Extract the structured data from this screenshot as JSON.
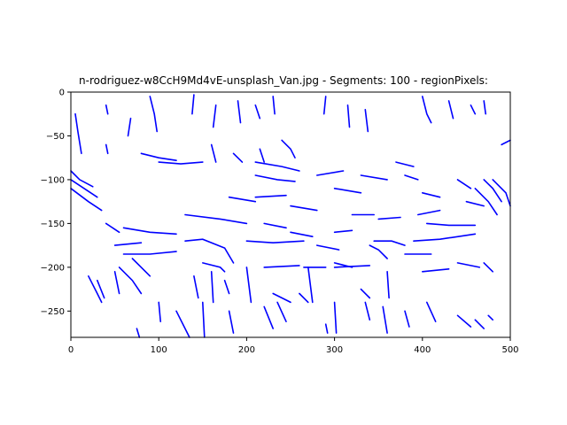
{
  "chart_data": {
    "type": "line",
    "title": "n-rodriguez-w8CcH9Md4vE-unsplash_Van.jpg - Segments: 100 - regionPixels:",
    "xlabel": "",
    "ylabel": "",
    "xlim": [
      0,
      500
    ],
    "ylim": [
      -280,
      0
    ],
    "x_ticks": [
      0,
      100,
      200,
      300,
      400,
      500
    ],
    "y_ticks": [
      0,
      -50,
      -100,
      -150,
      -200,
      -250
    ],
    "x_tick_labels": [
      "0",
      "100",
      "200",
      "300",
      "400",
      "500"
    ],
    "y_tick_labels": [
      "0",
      "−50",
      "−100",
      "−150",
      "−200",
      "−250"
    ],
    "grid": false,
    "line_color": "#0000ff",
    "series": [
      {
        "points": [
          [
            5,
            -25
          ],
          [
            8,
            -45
          ],
          [
            12,
            -70
          ]
        ]
      },
      {
        "points": [
          [
            40,
            -15
          ],
          [
            42,
            -25
          ]
        ]
      },
      {
        "points": [
          [
            68,
            -30
          ],
          [
            65,
            -50
          ]
        ]
      },
      {
        "points": [
          [
            90,
            -5
          ],
          [
            95,
            -25
          ],
          [
            98,
            -45
          ]
        ]
      },
      {
        "points": [
          [
            140,
            -3
          ],
          [
            138,
            -25
          ]
        ]
      },
      {
        "points": [
          [
            165,
            -15
          ],
          [
            162,
            -40
          ]
        ]
      },
      {
        "points": [
          [
            190,
            -10
          ],
          [
            193,
            -35
          ]
        ]
      },
      {
        "points": [
          [
            210,
            -15
          ],
          [
            215,
            -30
          ]
        ]
      },
      {
        "points": [
          [
            230,
            -5
          ],
          [
            232,
            -25
          ]
        ]
      },
      {
        "points": [
          [
            290,
            -5
          ],
          [
            288,
            -25
          ]
        ]
      },
      {
        "points": [
          [
            315,
            -15
          ],
          [
            317,
            -40
          ]
        ]
      },
      {
        "points": [
          [
            335,
            -20
          ],
          [
            338,
            -45
          ]
        ]
      },
      {
        "points": [
          [
            400,
            -5
          ],
          [
            405,
            -25
          ],
          [
            410,
            -35
          ]
        ]
      },
      {
        "points": [
          [
            430,
            -10
          ],
          [
            435,
            -30
          ]
        ]
      },
      {
        "points": [
          [
            455,
            -15
          ],
          [
            460,
            -25
          ]
        ]
      },
      {
        "points": [
          [
            470,
            -10
          ],
          [
            472,
            -25
          ]
        ]
      },
      {
        "points": [
          [
            490,
            -60
          ],
          [
            500,
            -55
          ]
        ]
      },
      {
        "points": [
          [
            40,
            -60
          ],
          [
            42,
            -70
          ]
        ]
      },
      {
        "points": [
          [
            80,
            -70
          ],
          [
            100,
            -75
          ],
          [
            120,
            -78
          ]
        ]
      },
      {
        "points": [
          [
            100,
            -80
          ],
          [
            125,
            -82
          ],
          [
            150,
            -80
          ]
        ]
      },
      {
        "points": [
          [
            160,
            -60
          ],
          [
            165,
            -80
          ]
        ]
      },
      {
        "points": [
          [
            185,
            -70
          ],
          [
            195,
            -80
          ]
        ]
      },
      {
        "points": [
          [
            215,
            -65
          ],
          [
            220,
            -80
          ]
        ]
      },
      {
        "points": [
          [
            210,
            -80
          ],
          [
            240,
            -85
          ],
          [
            260,
            -90
          ]
        ]
      },
      {
        "points": [
          [
            210,
            -95
          ],
          [
            235,
            -100
          ],
          [
            255,
            -102
          ]
        ]
      },
      {
        "points": [
          [
            240,
            -55
          ],
          [
            250,
            -65
          ],
          [
            255,
            -75
          ]
        ]
      },
      {
        "points": [
          [
            210,
            -120
          ],
          [
            245,
            -118
          ]
        ]
      },
      {
        "points": [
          [
            250,
            -130
          ],
          [
            280,
            -135
          ]
        ]
      },
      {
        "points": [
          [
            280,
            -95
          ],
          [
            310,
            -90
          ]
        ]
      },
      {
        "points": [
          [
            300,
            -110
          ],
          [
            330,
            -115
          ]
        ]
      },
      {
        "points": [
          [
            330,
            -95
          ],
          [
            360,
            -100
          ]
        ]
      },
      {
        "points": [
          [
            370,
            -80
          ],
          [
            390,
            -85
          ]
        ]
      },
      {
        "points": [
          [
            380,
            -95
          ],
          [
            395,
            -100
          ]
        ]
      },
      {
        "points": [
          [
            400,
            -115
          ],
          [
            420,
            -120
          ]
        ]
      },
      {
        "points": [
          [
            450,
            -125
          ],
          [
            470,
            -130
          ]
        ]
      },
      {
        "points": [
          [
            440,
            -100
          ],
          [
            455,
            -110
          ]
        ]
      },
      {
        "points": [
          [
            405,
            -150
          ],
          [
            430,
            -152
          ],
          [
            460,
            -152
          ]
        ]
      },
      {
        "points": [
          [
            320,
            -140
          ],
          [
            345,
            -140
          ]
        ]
      },
      {
        "points": [
          [
            350,
            -145
          ],
          [
            375,
            -143
          ]
        ]
      },
      {
        "points": [
          [
            395,
            -140
          ],
          [
            420,
            -135
          ]
        ]
      },
      {
        "points": [
          [
            60,
            -155
          ],
          [
            90,
            -160
          ],
          [
            120,
            -162
          ]
        ]
      },
      {
        "points": [
          [
            60,
            -185
          ],
          [
            90,
            -185
          ],
          [
            120,
            -182
          ]
        ]
      },
      {
        "points": [
          [
            130,
            -170
          ],
          [
            150,
            -168
          ],
          [
            175,
            -178
          ],
          [
            185,
            -195
          ]
        ]
      },
      {
        "points": [
          [
            130,
            -140
          ],
          [
            170,
            -145
          ],
          [
            200,
            -150
          ]
        ]
      },
      {
        "points": [
          [
            180,
            -120
          ],
          [
            210,
            -125
          ]
        ]
      },
      {
        "points": [
          [
            50,
            -175
          ],
          [
            80,
            -172
          ]
        ]
      },
      {
        "points": [
          [
            40,
            -150
          ],
          [
            55,
            -160
          ]
        ]
      },
      {
        "points": [
          [
            200,
            -170
          ],
          [
            230,
            -172
          ],
          [
            265,
            -170
          ]
        ]
      },
      {
        "points": [
          [
            220,
            -150
          ],
          [
            245,
            -155
          ]
        ]
      },
      {
        "points": [
          [
            250,
            -160
          ],
          [
            275,
            -165
          ]
        ]
      },
      {
        "points": [
          [
            280,
            -175
          ],
          [
            305,
            -180
          ]
        ]
      },
      {
        "points": [
          [
            300,
            -160
          ],
          [
            320,
            -158
          ]
        ]
      },
      {
        "points": [
          [
            300,
            -195
          ],
          [
            320,
            -200
          ]
        ]
      },
      {
        "points": [
          [
            220,
            -200
          ],
          [
            260,
            -198
          ]
        ]
      },
      {
        "points": [
          [
            265,
            -200
          ],
          [
            290,
            -200
          ]
        ]
      },
      {
        "points": [
          [
            300,
            -200
          ],
          [
            340,
            -198
          ]
        ]
      },
      {
        "points": [
          [
            390,
            -170
          ],
          [
            420,
            -168
          ],
          [
            460,
            -162
          ]
        ]
      },
      {
        "points": [
          [
            380,
            -185
          ],
          [
            410,
            -185
          ]
        ]
      },
      {
        "points": [
          [
            440,
            -195
          ],
          [
            465,
            -200
          ]
        ]
      },
      {
        "points": [
          [
            470,
            -195
          ],
          [
            480,
            -205
          ]
        ]
      },
      {
        "points": [
          [
            400,
            -205
          ],
          [
            430,
            -202
          ]
        ]
      },
      {
        "points": [
          [
            150,
            -195
          ],
          [
            170,
            -200
          ],
          [
            175,
            -205
          ]
        ]
      },
      {
        "points": [
          [
            175,
            -215
          ],
          [
            180,
            -230
          ]
        ]
      },
      {
        "points": [
          [
            20,
            -210
          ],
          [
            30,
            -230
          ],
          [
            35,
            -240
          ]
        ]
      },
      {
        "points": [
          [
            30,
            -215
          ],
          [
            38,
            -235
          ]
        ]
      },
      {
        "points": [
          [
            50,
            -205
          ],
          [
            55,
            -230
          ]
        ]
      },
      {
        "points": [
          [
            140,
            -210
          ],
          [
            145,
            -235
          ]
        ]
      },
      {
        "points": [
          [
            160,
            -205
          ],
          [
            162,
            -240
          ]
        ]
      },
      {
        "points": [
          [
            200,
            -200
          ],
          [
            205,
            -240
          ]
        ]
      },
      {
        "points": [
          [
            270,
            -200
          ],
          [
            275,
            -240
          ]
        ]
      },
      {
        "points": [
          [
            360,
            -205
          ],
          [
            362,
            -235
          ]
        ]
      },
      {
        "points": [
          [
            330,
            -225
          ],
          [
            340,
            -235
          ]
        ]
      },
      {
        "points": [
          [
            230,
            -230
          ],
          [
            250,
            -240
          ]
        ]
      },
      {
        "points": [
          [
            260,
            -230
          ],
          [
            270,
            -240
          ]
        ]
      },
      {
        "points": [
          [
            100,
            -240
          ],
          [
            102,
            -262
          ]
        ]
      },
      {
        "points": [
          [
            120,
            -250
          ],
          [
            135,
            -280
          ]
        ]
      },
      {
        "points": [
          [
            150,
            -240
          ],
          [
            152,
            -280
          ]
        ]
      },
      {
        "points": [
          [
            180,
            -250
          ],
          [
            185,
            -275
          ]
        ]
      },
      {
        "points": [
          [
            220,
            -245
          ],
          [
            230,
            -270
          ]
        ]
      },
      {
        "points": [
          [
            235,
            -240
          ],
          [
            245,
            -262
          ]
        ]
      },
      {
        "points": [
          [
            300,
            -240
          ],
          [
            302,
            -275
          ]
        ]
      },
      {
        "points": [
          [
            335,
            -240
          ],
          [
            340,
            -260
          ]
        ]
      },
      {
        "points": [
          [
            355,
            -245
          ],
          [
            360,
            -275
          ]
        ]
      },
      {
        "points": [
          [
            380,
            -250
          ],
          [
            385,
            -268
          ]
        ]
      },
      {
        "points": [
          [
            405,
            -240
          ],
          [
            415,
            -262
          ]
        ]
      },
      {
        "points": [
          [
            440,
            -255
          ],
          [
            455,
            -268
          ]
        ]
      },
      {
        "points": [
          [
            460,
            -260
          ],
          [
            470,
            -270
          ]
        ]
      },
      {
        "points": [
          [
            475,
            -255
          ],
          [
            480,
            -260
          ]
        ]
      },
      {
        "points": [
          [
            75,
            -270
          ],
          [
            78,
            -280
          ]
        ]
      },
      {
        "points": [
          [
            290,
            -265
          ],
          [
            292,
            -275
          ]
        ]
      },
      {
        "points": [
          [
            0,
            -100
          ],
          [
            15,
            -110
          ],
          [
            30,
            -120
          ]
        ]
      },
      {
        "points": [
          [
            0,
            -110
          ],
          [
            20,
            -125
          ],
          [
            35,
            -135
          ]
        ]
      },
      {
        "points": [
          [
            0,
            -90
          ],
          [
            10,
            -100
          ],
          [
            25,
            -108
          ]
        ]
      },
      {
        "points": [
          [
            470,
            -100
          ],
          [
            480,
            -110
          ],
          [
            490,
            -125
          ]
        ]
      },
      {
        "points": [
          [
            460,
            -110
          ],
          [
            475,
            -125
          ],
          [
            485,
            -140
          ]
        ]
      },
      {
        "points": [
          [
            480,
            -100
          ],
          [
            495,
            -115
          ],
          [
            500,
            -130
          ]
        ]
      },
      {
        "points": [
          [
            340,
            -175
          ],
          [
            350,
            -180
          ],
          [
            360,
            -190
          ]
        ]
      },
      {
        "points": [
          [
            345,
            -170
          ],
          [
            365,
            -170
          ],
          [
            380,
            -175
          ]
        ]
      },
      {
        "points": [
          [
            70,
            -190
          ],
          [
            80,
            -200
          ],
          [
            90,
            -210
          ]
        ]
      },
      {
        "points": [
          [
            55,
            -200
          ],
          [
            70,
            -215
          ],
          [
            80,
            -230
          ]
        ]
      }
    ]
  }
}
